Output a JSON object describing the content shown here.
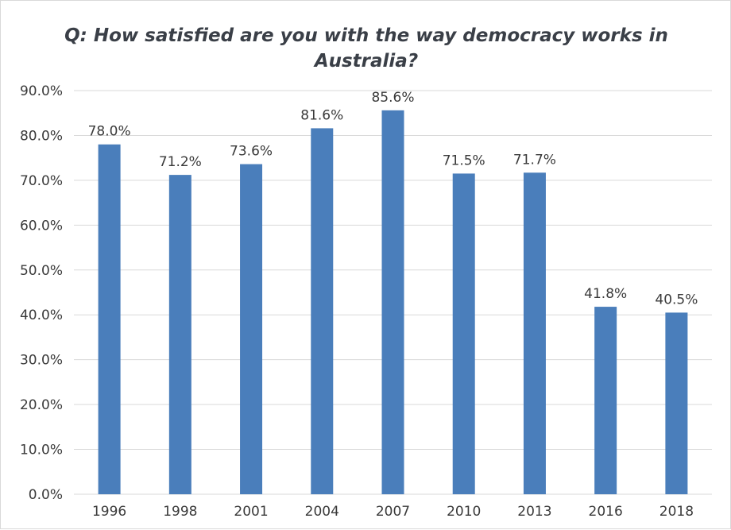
{
  "chart_data": {
    "type": "bar",
    "title": "Q: How satisfied are you with the way democracy works in Australia?",
    "categories": [
      "1996",
      "1998",
      "2001",
      "2004",
      "2007",
      "2010",
      "2013",
      "2016",
      "2018"
    ],
    "values": [
      78.0,
      71.2,
      73.6,
      81.6,
      85.6,
      71.5,
      71.7,
      41.8,
      40.5
    ],
    "data_labels": [
      "78.0%",
      "71.2%",
      "73.6%",
      "81.6%",
      "85.6%",
      "71.5%",
      "71.7%",
      "41.8%",
      "40.5%"
    ],
    "y_ticks": [
      "0.0%",
      "10.0%",
      "20.0%",
      "30.0%",
      "40.0%",
      "50.0%",
      "60.0%",
      "70.0%",
      "80.0%",
      "90.0%"
    ],
    "ylim": [
      0,
      90
    ],
    "grid": true,
    "bar_color": "#4a7ebb",
    "grid_color": "#d9d9d9"
  }
}
